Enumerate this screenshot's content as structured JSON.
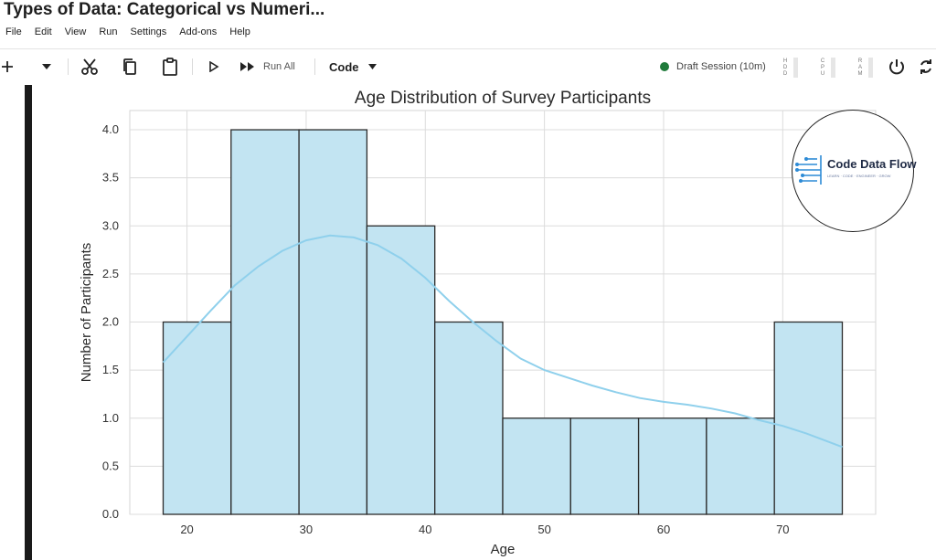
{
  "window": {
    "title": "Types of Data: Categorical vs Numeri..."
  },
  "menu": [
    "File",
    "Edit",
    "View",
    "Run",
    "Settings",
    "Add-ons",
    "Help"
  ],
  "toolbar": {
    "add_icon": "plus-icon",
    "run_all_label": "Run All",
    "cell_type": "Code"
  },
  "session": {
    "label": "Draft Session (10m)",
    "status_color": "#1f7a3a"
  },
  "meters": [
    "HDD",
    "CPU",
    "RAM"
  ],
  "logo": {
    "text": "Code Data Flow",
    "subtitle": "LEARN · CODE · ENGINEER · GROW"
  },
  "chart_data": {
    "type": "bar",
    "title": "Age Distribution of Survey Participants",
    "xlabel": "Age",
    "ylabel": "Number of Participants",
    "bin_edges": [
      18,
      23.7,
      29.4,
      35.1,
      40.8,
      46.5,
      52.2,
      57.9,
      63.6,
      69.3,
      75
    ],
    "values": [
      2,
      4,
      4,
      3,
      2,
      1,
      1,
      1,
      1,
      2
    ],
    "kde": {
      "x": [
        18,
        20,
        22,
        24,
        26,
        28,
        30,
        32,
        34,
        36,
        38,
        40,
        42,
        44,
        46,
        48,
        50,
        52,
        54,
        56,
        58,
        60,
        62,
        64,
        66,
        68,
        70,
        72,
        75
      ],
      "y": [
        1.58,
        1.85,
        2.12,
        2.38,
        2.58,
        2.74,
        2.85,
        2.9,
        2.88,
        2.8,
        2.66,
        2.46,
        2.22,
        2.0,
        1.8,
        1.62,
        1.5,
        1.42,
        1.34,
        1.27,
        1.21,
        1.17,
        1.14,
        1.1,
        1.05,
        0.98,
        0.92,
        0.84,
        0.7
      ]
    },
    "xticks": [
      20,
      30,
      40,
      50,
      60,
      70
    ],
    "yticks": [
      "0.0",
      "0.5",
      "1.0",
      "1.5",
      "2.0",
      "2.5",
      "3.0",
      "3.5",
      "4.0"
    ],
    "xlim": [
      15.2,
      77.8
    ],
    "ylim": [
      0,
      4.2
    ],
    "grid": true,
    "bar_color": "#c2e4f2",
    "edge_color": "#2b2b2b",
    "kde_color": "#8fd0ec"
  }
}
